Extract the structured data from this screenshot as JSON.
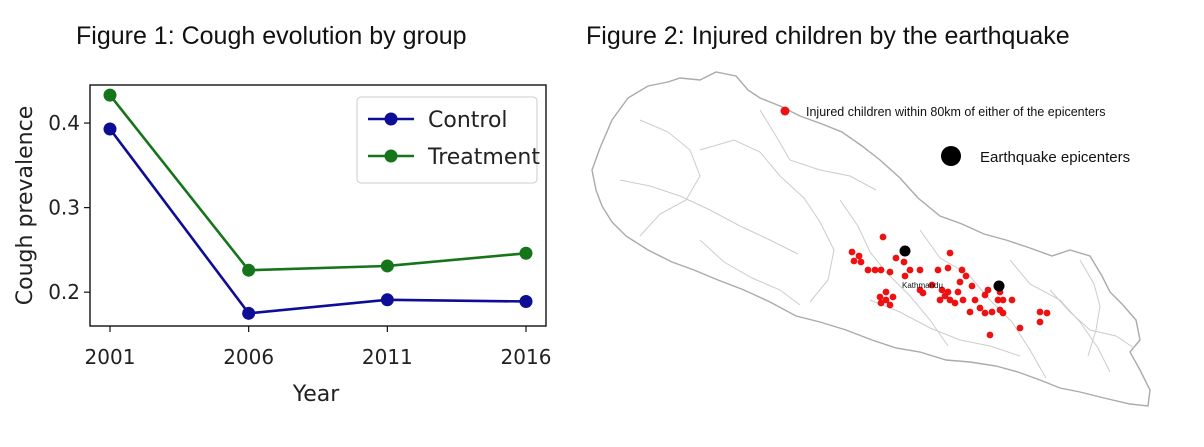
{
  "figure1": {
    "title": "Figure 1: Cough evolution by group"
  },
  "figure2": {
    "title": "Figure 2: Injured children by the earthquake",
    "legend_injured": "Injured children within 80km of either of the epicenters",
    "legend_epicenters": "Earthquake epicenters",
    "city_label": "Kathmandu",
    "colors": {
      "injured": "#ee1111",
      "epicenter": "#000000",
      "border": "#aaaaaa",
      "districts": "#cccccc"
    }
  },
  "chart_data": {
    "type": "line",
    "x": [
      2001,
      2006,
      2011,
      2016
    ],
    "categories": [
      "2001",
      "2006",
      "2011",
      "2016"
    ],
    "series": [
      {
        "name": "Control",
        "values": [
          0.393,
          0.175,
          0.191,
          0.189
        ],
        "color": "#0d0d96"
      },
      {
        "name": "Treatment",
        "values": [
          0.433,
          0.226,
          0.231,
          0.246
        ],
        "color": "#16751a"
      }
    ],
    "xlabel": "Year",
    "ylabel": "Cough prevalence",
    "ylim": [
      0.16,
      0.445
    ],
    "yticks": [
      0.2,
      0.3,
      0.4
    ],
    "ytick_labels": [
      "0.2",
      "0.3",
      "0.4"
    ],
    "grid": false,
    "legend": "top-right"
  }
}
